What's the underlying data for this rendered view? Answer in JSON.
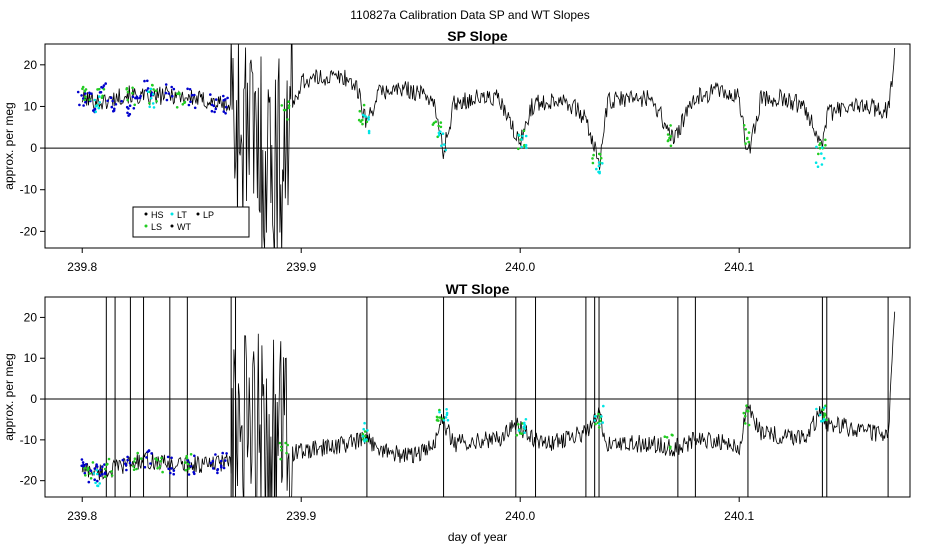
{
  "figure": {
    "title": "110827a   Calibration Data SP and WT Slopes"
  },
  "chart_data": [
    {
      "type": "line",
      "title": "SP Slope",
      "xlabel": "",
      "ylabel": "approx. per meg",
      "xlim": [
        239.783,
        240.178
      ],
      "ylim": [
        -24,
        25
      ],
      "xticks": [
        239.8,
        239.9,
        240.0,
        240.1
      ],
      "xtick_labels": [
        "239.8",
        "239.9",
        "240.0",
        "240.1"
      ],
      "yticks": [
        -20,
        -10,
        0,
        10,
        20
      ],
      "ytick_labels": [
        "-20",
        "-10",
        "0",
        "10",
        "20"
      ],
      "hline": 0,
      "legend": {
        "position": "bottom-left",
        "entries": [
          {
            "label": "HS",
            "color": "#000000"
          },
          {
            "label": "LS",
            "color": "#22cc22"
          },
          {
            "label": "LT",
            "color": "#00e5e5"
          },
          {
            "label": "WT",
            "color": "#000000"
          },
          {
            "label": "LP",
            "color": "#000000"
          }
        ]
      },
      "series": [
        {
          "name": "WT",
          "color": "#000000",
          "x": [
            239.8,
            239.81,
            239.82,
            239.83,
            239.84,
            239.85,
            239.86,
            239.868,
            239.872,
            239.88,
            239.89,
            239.895,
            239.9,
            239.91,
            239.92,
            239.925,
            239.93,
            239.935,
            239.94,
            239.95,
            239.96,
            239.965,
            239.97,
            239.98,
            239.99,
            239.998,
            240.0,
            240.005,
            240.01,
            240.02,
            240.03,
            240.036,
            240.04,
            240.05,
            240.06,
            240.07,
            240.08,
            240.09,
            240.1,
            240.104,
            240.11,
            240.12,
            240.13,
            240.138,
            240.14,
            240.15,
            240.16,
            240.168,
            240.171
          ],
          "y": [
            12,
            11,
            13,
            12,
            13,
            12,
            11,
            10,
            5,
            0,
            -4,
            8,
            16,
            17,
            17,
            15,
            6,
            13,
            14,
            14,
            12,
            -1,
            11,
            12,
            12,
            3,
            1,
            10,
            11,
            12,
            7,
            -4,
            11,
            12,
            12,
            2,
            12,
            14,
            12,
            -2,
            12,
            12,
            10,
            1,
            8,
            10,
            10,
            9,
            22
          ]
        }
      ],
      "point_groups": [
        {
          "name": "HS",
          "color": "#0000cc",
          "x": [
            239.8,
            239.805,
            239.81,
            239.815,
            239.82,
            239.825,
            239.83,
            239.84,
            239.85,
            239.86,
            239.865
          ],
          "y": [
            12,
            11,
            13,
            11,
            10,
            10,
            14,
            13,
            12,
            11,
            10
          ]
        },
        {
          "name": "LS",
          "color": "#22cc22",
          "x": [
            239.802,
            239.808,
            239.822,
            239.832,
            239.845,
            239.893,
            239.928,
            239.962,
            240.0,
            240.035,
            240.068,
            240.103,
            240.138
          ],
          "y": [
            13,
            12,
            12,
            13,
            12,
            9,
            8,
            4,
            2,
            -2,
            3,
            3,
            1
          ]
        },
        {
          "name": "LT",
          "color": "#00e5e5",
          "x": [
            239.806,
            239.831,
            239.929,
            239.964,
            240.001,
            240.036,
            240.137
          ],
          "y": [
            10,
            12,
            6,
            2,
            1,
            -4,
            -2
          ]
        }
      ]
    },
    {
      "type": "line",
      "title": "WT Slope",
      "xlabel": "day of year",
      "ylabel": "approx. per meg",
      "xlim": [
        239.783,
        240.178
      ],
      "ylim": [
        -24,
        25
      ],
      "xticks": [
        239.8,
        239.9,
        240.0,
        240.1
      ],
      "xtick_labels": [
        "239.8",
        "239.9",
        "240.0",
        "240.1"
      ],
      "yticks": [
        -20,
        -10,
        0,
        10,
        20
      ],
      "ytick_labels": [
        "-20",
        "-10",
        "0",
        "10",
        "20"
      ],
      "hline": 0,
      "series": [
        {
          "name": "WT",
          "color": "#000000",
          "x": [
            239.8,
            239.81,
            239.82,
            239.83,
            239.84,
            239.85,
            239.86,
            239.868,
            239.872,
            239.88,
            239.89,
            239.895,
            239.9,
            239.91,
            239.92,
            239.93,
            239.94,
            239.95,
            239.96,
            239.964,
            239.97,
            239.98,
            239.99,
            239.998,
            240.0,
            240.01,
            240.02,
            240.03,
            240.036,
            240.04,
            240.05,
            240.06,
            240.07,
            240.08,
            240.09,
            240.1,
            240.104,
            240.11,
            240.12,
            240.13,
            240.138,
            240.14,
            240.15,
            240.16,
            240.168,
            240.171
          ],
          "y": [
            -17,
            -18,
            -16,
            -15,
            -16,
            -16,
            -16,
            -15,
            -10,
            -8,
            -9,
            -13,
            -13,
            -12,
            -11,
            -10,
            -13,
            -14,
            -12,
            -5,
            -11,
            -10,
            -10,
            -6,
            -7,
            -11,
            -10,
            -8,
            -4,
            -11,
            -11,
            -11,
            -12,
            -10,
            -10,
            -12,
            -2,
            -8,
            -9,
            -9,
            -3,
            -6,
            -7,
            -8,
            -9,
            20
          ]
        }
      ],
      "spikes": [
        239.811,
        239.815,
        239.822,
        239.828,
        239.84,
        239.848,
        239.868,
        239.87,
        239.93,
        239.965,
        239.998,
        240.007,
        240.03,
        240.034,
        240.036,
        240.072,
        240.08,
        240.104,
        240.138,
        240.14,
        240.168
      ],
      "point_groups": [
        {
          "name": "HS",
          "color": "#0000cc",
          "x": [
            239.8,
            239.805,
            239.81,
            239.82,
            239.83,
            239.84,
            239.85,
            239.86,
            239.865
          ],
          "y": [
            -17,
            -18,
            -17,
            -16,
            -15,
            -16,
            -16,
            -16,
            -15
          ]
        },
        {
          "name": "LS",
          "color": "#22cc22",
          "x": [
            239.803,
            239.812,
            239.825,
            239.835,
            239.848,
            239.892,
            239.928,
            239.963,
            240.0,
            240.035,
            240.068,
            240.103,
            240.138
          ],
          "y": [
            -18,
            -17,
            -15,
            -16,
            -16,
            -13,
            -10,
            -5,
            -7,
            -6,
            -10,
            -4,
            -4
          ]
        },
        {
          "name": "LT",
          "color": "#00e5e5",
          "x": [
            239.807,
            239.93,
            239.965,
            240.001,
            240.036,
            240.137
          ],
          "y": [
            -19,
            -8,
            -5,
            -6,
            -4,
            -3
          ]
        }
      ]
    }
  ]
}
